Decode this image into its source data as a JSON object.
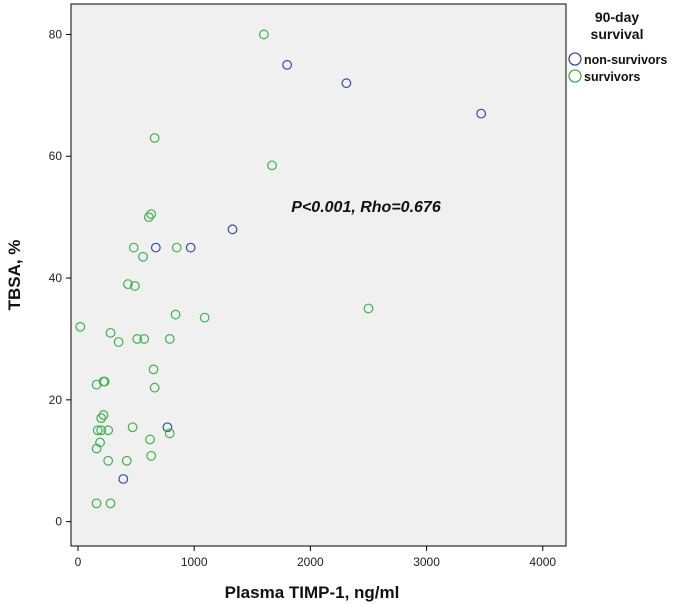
{
  "chart_data": {
    "type": "scatter",
    "title": "",
    "xlabel": "Plasma TIMP-1, ng/ml",
    "ylabel": "TBSA, %",
    "xlim": [
      -60,
      4200
    ],
    "ylim": [
      -4,
      85
    ],
    "xticks": [
      0,
      1000,
      2000,
      3000,
      4000
    ],
    "yticks": [
      0,
      20,
      40,
      60,
      80
    ],
    "grid": false,
    "background": "#f0f0f0",
    "annotation": "P<0.001, Rho=0.676",
    "legend": {
      "title_line1": "90-day",
      "title_line2": "survival",
      "position": "top-right, outside plot"
    },
    "series": [
      {
        "name": "non-survivors",
        "color": "#3a4aa0",
        "points": [
          [
            1800,
            75
          ],
          [
            2310,
            72
          ],
          [
            3470,
            67
          ],
          [
            1330,
            48
          ],
          [
            670,
            45
          ],
          [
            970,
            45
          ],
          [
            770,
            15.5
          ],
          [
            390,
            7
          ]
        ]
      },
      {
        "name": "survivors",
        "color": "#3cb44b",
        "points": [
          [
            1600,
            80
          ],
          [
            660,
            63
          ],
          [
            1670,
            58.5
          ],
          [
            630,
            50.5
          ],
          [
            610,
            50
          ],
          [
            480,
            45
          ],
          [
            850,
            45
          ],
          [
            560,
            43.5
          ],
          [
            430,
            39
          ],
          [
            490,
            38.7
          ],
          [
            840,
            34
          ],
          [
            1090,
            33.5
          ],
          [
            2500,
            35
          ],
          [
            20,
            32
          ],
          [
            280,
            31
          ],
          [
            350,
            29.5
          ],
          [
            510,
            30
          ],
          [
            570,
            30
          ],
          [
            790,
            30
          ],
          [
            650,
            25
          ],
          [
            160,
            22.5
          ],
          [
            220,
            23
          ],
          [
            230,
            23
          ],
          [
            660,
            22
          ],
          [
            220,
            17.5
          ],
          [
            200,
            17
          ],
          [
            170,
            15
          ],
          [
            200,
            15
          ],
          [
            260,
            15
          ],
          [
            470,
            15.5
          ],
          [
            790,
            14.5
          ],
          [
            620,
            13.5
          ],
          [
            190,
            13
          ],
          [
            160,
            12
          ],
          [
            630,
            10.8
          ],
          [
            260,
            10
          ],
          [
            420,
            10
          ],
          [
            160,
            3
          ],
          [
            280,
            3
          ]
        ]
      }
    ]
  }
}
